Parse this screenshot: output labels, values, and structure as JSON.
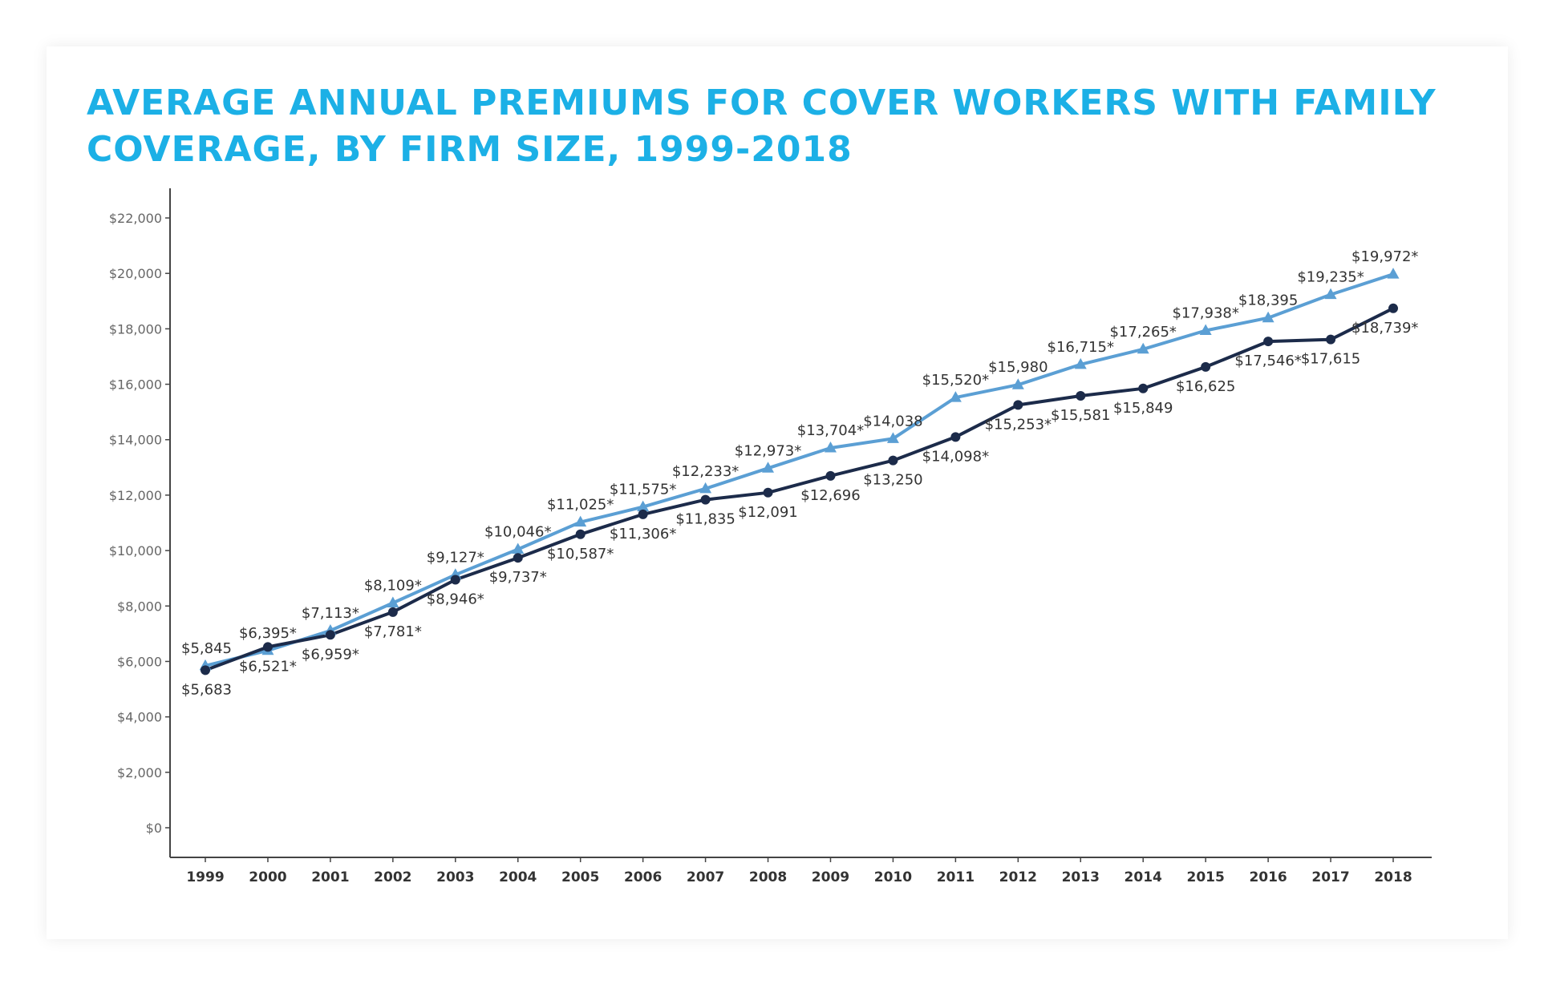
{
  "colors": {
    "title": "#1cb0e6",
    "series_small": "#5b9fd4",
    "series_large": "#1c2b4a",
    "axis": "#444444"
  },
  "chart_data": {
    "type": "line",
    "title": "AVERAGE ANNUAL PREMIUMS FOR COVER WORKERS WITH FAMILY COVERAGE, BY FIRM SIZE, 1999-2018",
    "xlabel": "",
    "ylabel": "",
    "ylim": [
      0,
      22000
    ],
    "grid": false,
    "x": [
      "1999",
      "2000",
      "2001",
      "2002",
      "2003",
      "2004",
      "2005",
      "2006",
      "2007",
      "2008",
      "2009",
      "2010",
      "2011",
      "2012",
      "2013",
      "2014",
      "2015",
      "2016",
      "2017",
      "2018"
    ],
    "yticks": [
      "$0",
      "$2,000",
      "$4,000",
      "$6,000",
      "$8,000",
      "$10,000",
      "$12,000",
      "$14,000",
      "$16,000",
      "$18,000",
      "$20,000",
      "$22,000"
    ],
    "series": [
      {
        "marker": "triangle",
        "color": "#5b9fd4",
        "values": [
          5845,
          6395,
          7113,
          8109,
          9127,
          10046,
          11025,
          11575,
          12233,
          12973,
          13704,
          14038,
          15520,
          15980,
          16715,
          17265,
          17938,
          18395,
          19235,
          19972
        ],
        "labels": [
          "$5,845",
          "$6,395*",
          "$7,113*",
          "$8,109*",
          "$9,127*",
          "$10,046*",
          "$11,025*",
          "$11,575*",
          "$12,233*",
          "$12,973*",
          "$13,704*",
          "$14,038",
          "$15,520*",
          "$15,980",
          "$16,715*",
          "$17,265*",
          "$17,938*",
          "$18,395",
          "$19,235*",
          "$19,972*"
        ]
      },
      {
        "marker": "circle",
        "color": "#1c2b4a",
        "values": [
          5683,
          6521,
          6959,
          7781,
          8946,
          9737,
          10587,
          11306,
          11835,
          12091,
          12696,
          13250,
          14098,
          15253,
          15581,
          15849,
          16625,
          17546,
          17615,
          18739
        ],
        "labels": [
          "$5,683",
          "$6,521*",
          "$6,959*",
          "$7,781*",
          "$8,946*",
          "$9,737*",
          "$10,587*",
          "$11,306*",
          "$11,835",
          "$12,091",
          "$12,696",
          "$13,250",
          "$14,098*",
          "$15,253*",
          "$15,581",
          "$15,849",
          "$16,625",
          "$17,546*",
          "$17,615",
          "$18,739*"
        ]
      }
    ]
  }
}
